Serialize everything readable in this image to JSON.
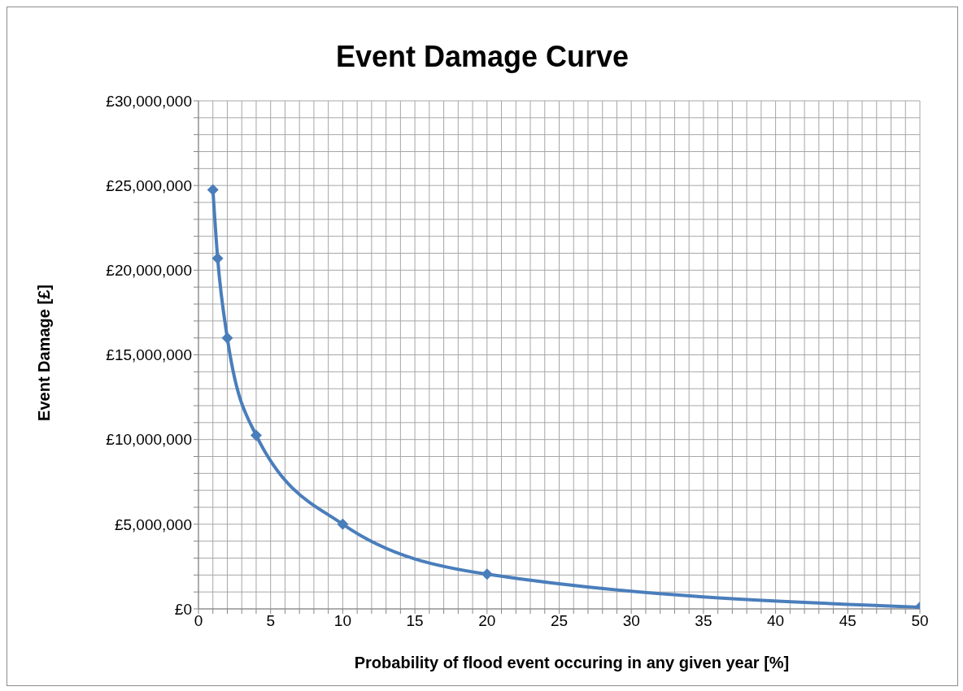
{
  "chart_data": {
    "type": "line",
    "title": "Event Damage Curve",
    "xlabel": "Probability of flood event occuring in any given year [%]",
    "ylabel": "Event Damage [£]",
    "x": [
      1,
      1.33,
      2,
      4,
      10,
      20,
      50
    ],
    "series": [
      {
        "color": "#4a7ebb",
        "values": [
          24750000,
          20700000,
          16000000,
          10250000,
          5000000,
          2050000,
          100000
        ]
      }
    ],
    "xlim": [
      0,
      50
    ],
    "xticks": [
      0,
      {
        "value": 1,
        "label": null
      },
      {
        "value": 2,
        "label": null
      },
      {
        "value": 3,
        "label": null
      },
      {
        "value": 4,
        "label": null
      },
      5,
      {
        "value": 6,
        "label": null
      },
      {
        "value": 7,
        "label": null
      },
      {
        "value": 8,
        "label": null
      },
      {
        "value": 9,
        "label": null
      },
      10,
      {
        "value": 11,
        "label": null
      },
      {
        "value": 12,
        "label": null
      },
      {
        "value": 13,
        "label": null
      },
      {
        "value": 14,
        "label": null
      },
      15,
      {
        "value": 16,
        "label": null
      },
      {
        "value": 17,
        "label": null
      },
      {
        "value": 18,
        "label": null
      },
      {
        "value": 19,
        "label": null
      },
      20,
      {
        "value": 21,
        "label": null
      },
      {
        "value": 22,
        "label": null
      },
      {
        "value": 23,
        "label": null
      },
      {
        "value": 24,
        "label": null
      },
      25,
      {
        "value": 26,
        "label": null
      },
      {
        "value": 27,
        "label": null
      },
      {
        "value": 28,
        "label": null
      },
      {
        "value": 29,
        "label": null
      },
      30,
      {
        "value": 31,
        "label": null
      },
      {
        "value": 32,
        "label": null
      },
      {
        "value": 33,
        "label": null
      },
      {
        "value": 34,
        "label": null
      },
      35,
      {
        "value": 36,
        "label": null
      },
      {
        "value": 37,
        "label": null
      },
      {
        "value": 38,
        "label": null
      },
      {
        "value": 39,
        "label": null
      },
      40,
      {
        "value": 41,
        "label": null
      },
      {
        "value": 42,
        "label": null
      },
      {
        "value": 43,
        "label": null
      },
      {
        "value": 44,
        "label": null
      },
      45,
      {
        "value": 46,
        "label": null
      },
      {
        "value": 47,
        "label": null
      },
      {
        "value": 48,
        "label": null
      },
      {
        "value": 49,
        "label": null
      },
      50
    ],
    "ylim": [
      0,
      30000000
    ],
    "yticks": [
      {
        "value": 0,
        "label": "£0"
      },
      {
        "value": 1000000,
        "label": null
      },
      {
        "value": 2000000,
        "label": null
      },
      {
        "value": 3000000,
        "label": null
      },
      {
        "value": 4000000,
        "label": null
      },
      {
        "value": 5000000,
        "label": "£5,000,000"
      },
      {
        "value": 6000000,
        "label": null
      },
      {
        "value": 7000000,
        "label": null
      },
      {
        "value": 8000000,
        "label": null
      },
      {
        "value": 9000000,
        "label": null
      },
      {
        "value": 10000000,
        "label": "£10,000,000"
      },
      {
        "value": 11000000,
        "label": null
      },
      {
        "value": 12000000,
        "label": null
      },
      {
        "value": 13000000,
        "label": null
      },
      {
        "value": 14000000,
        "label": null
      },
      {
        "value": 15000000,
        "label": "£15,000,000"
      },
      {
        "value": 16000000,
        "label": null
      },
      {
        "value": 17000000,
        "label": null
      },
      {
        "value": 18000000,
        "label": null
      },
      {
        "value": 19000000,
        "label": null
      },
      {
        "value": 20000000,
        "label": "£20,000,000"
      },
      {
        "value": 21000000,
        "label": null
      },
      {
        "value": 22000000,
        "label": null
      },
      {
        "value": 23000000,
        "label": null
      },
      {
        "value": 24000000,
        "label": null
      },
      {
        "value": 25000000,
        "label": "£25,000,000"
      },
      {
        "value": 26000000,
        "label": null
      },
      {
        "value": 27000000,
        "label": null
      },
      {
        "value": 28000000,
        "label": null
      },
      {
        "value": 29000000,
        "label": null
      },
      {
        "value": 30000000,
        "label": "£30,000,000"
      }
    ],
    "grid": true,
    "marker": "diamond",
    "line_style": "solid"
  }
}
